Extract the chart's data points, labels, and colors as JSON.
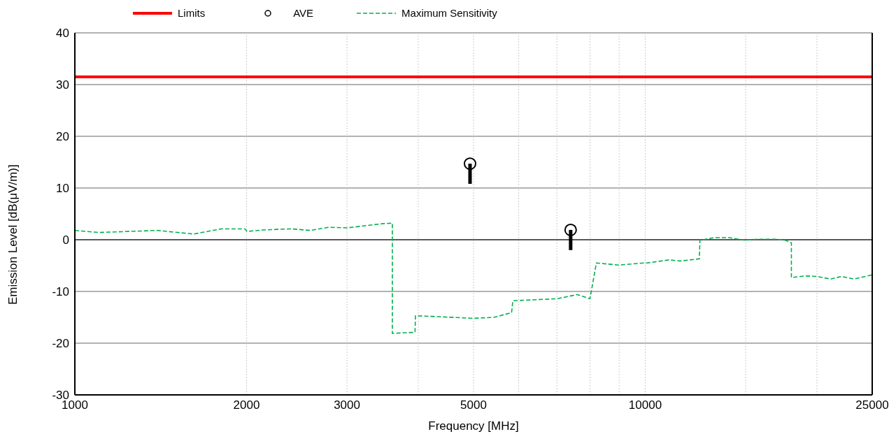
{
  "chart_data": {
    "type": "line",
    "xlabel": "Frequency [MHz]",
    "ylabel": "Emission Level [dB(μV/m)]",
    "log": "x",
    "grid": true,
    "legend": "top",
    "xlim": [
      1000,
      25000
    ],
    "ylim": [
      -30,
      40
    ],
    "xticks": [
      1000,
      2000,
      3000,
      {
        "value": 4000,
        "label": null
      },
      5000,
      {
        "value": 6000,
        "label": null
      },
      {
        "value": 7000,
        "label": null
      },
      {
        "value": 8000,
        "label": null
      },
      {
        "value": 9000,
        "label": null
      },
      10000,
      {
        "value": 15000,
        "label": null
      },
      {
        "value": 20000,
        "label": null
      },
      25000
    ],
    "yticks": [
      -30,
      -20,
      -10,
      0,
      10,
      20,
      30,
      40
    ],
    "ref_lines": [
      {
        "axis": "y",
        "value": 0,
        "color": "#000000"
      }
    ],
    "series": [
      {
        "name": "Limits",
        "color": "#ff0000",
        "line_style": "solid",
        "x": [
          1000,
          25000
        ],
        "values": [
          31.5,
          31.5
        ]
      },
      {
        "name": "AVE",
        "type": "scatter",
        "color": "#000000",
        "marker": "circle",
        "x": [
          4930,
          7400
        ],
        "values": [
          14.7,
          1.9
        ],
        "errors": [
          [
            10.8,
            14.7
          ],
          [
            -2.0,
            1.9
          ]
        ]
      },
      {
        "name": "Maximum Sensitivity",
        "color": "#00b050",
        "line_style": "dashed",
        "x": [
          1000,
          1103,
          1395,
          1615,
          1807,
          1986,
          2004,
          2140,
          2397,
          2585,
          2787,
          3005,
          3462,
          3603,
          3603,
          3948,
          3955,
          4380,
          4992,
          5430,
          5830,
          5860,
          7010,
          7600,
          8000,
          8210,
          9000,
          9940,
          10060,
          11000,
          11520,
          12440,
          12470,
          13210,
          14040,
          14960,
          15700,
          16940,
          17600,
          18040,
          18040,
          19050,
          19980,
          21140,
          22080,
          23230,
          25000
        ],
        "values": [
          1.8,
          1.4,
          1.8,
          1.1,
          2.1,
          2.1,
          1.6,
          1.9,
          2.1,
          1.8,
          2.4,
          2.3,
          3.1,
          3.2,
          -18.1,
          -17.9,
          -14.7,
          -14.9,
          -15.2,
          -15.0,
          -14.1,
          -11.8,
          -11.4,
          -10.6,
          -11.4,
          -4.5,
          -4.9,
          -4.5,
          -4.5,
          -3.9,
          -4.1,
          -3.7,
          -0.1,
          0.4,
          0.4,
          -0.1,
          0.1,
          0.1,
          -0.1,
          -0.6,
          -7.3,
          -7.0,
          -7.1,
          -7.6,
          -7.1,
          -7.6,
          -6.8
        ]
      }
    ]
  }
}
